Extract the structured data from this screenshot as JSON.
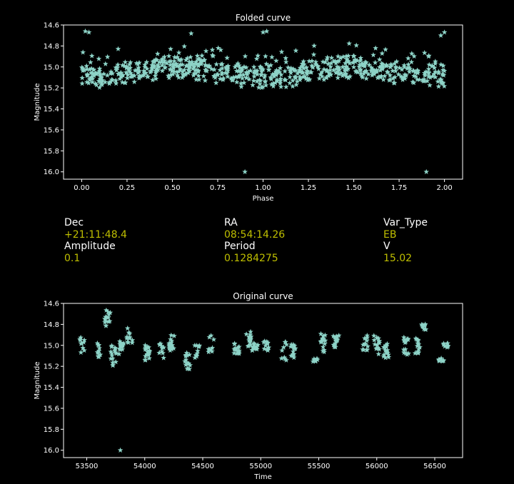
{
  "chart_data": [
    {
      "type": "scatter",
      "title": "Folded curve",
      "xlabel": "Phase",
      "ylabel": "Magnitude",
      "xlim": [
        -0.1,
        2.1
      ],
      "ylim": [
        16.07,
        14.6
      ],
      "y_inverted": true,
      "grid": false,
      "marker": "star",
      "color": "#8dd3c7",
      "xticks": [
        "0.00",
        "0.25",
        "0.50",
        "0.75",
        "1.00",
        "1.25",
        "1.50",
        "1.75",
        "2.00"
      ],
      "yticks": [
        "14.6",
        "14.8",
        "15.0",
        "15.2",
        "15.4",
        "15.6",
        "15.8",
        "16.0"
      ],
      "series_notes": "dense band between magnitude 14.85 and 15.2 across phase 0-2, plus outliers",
      "outliers": [
        {
          "x": 0.02,
          "y": 14.66
        },
        {
          "x": 0.04,
          "y": 14.67
        },
        {
          "x": 0.9,
          "y": 16.0
        },
        {
          "x": 1.0,
          "y": 14.67
        },
        {
          "x": 1.02,
          "y": 14.66
        },
        {
          "x": 1.9,
          "y": 16.0
        },
        {
          "x": 2.0,
          "y": 14.67
        },
        {
          "x": 1.98,
          "y": 14.7
        }
      ]
    },
    {
      "type": "scatter",
      "title": "Original curve",
      "xlabel": "Time",
      "ylabel": "Magnitude",
      "xlim": [
        53300,
        56740
      ],
      "ylim": [
        16.07,
        14.6
      ],
      "y_inverted": true,
      "grid": false,
      "marker": "star",
      "color": "#8dd3c7",
      "xticks": [
        "53500",
        "54000",
        "54500",
        "55000",
        "55500",
        "56000",
        "56500"
      ],
      "yticks": [
        "14.6",
        "14.8",
        "15.0",
        "15.2",
        "15.4",
        "15.6",
        "15.8",
        "16.0"
      ],
      "clusters": [
        [
          53460,
          14.92,
          15.08
        ],
        [
          53600,
          14.98,
          15.15
        ],
        [
          53680,
          14.66,
          14.82
        ],
        [
          53730,
          15.0,
          15.2
        ],
        [
          53800,
          14.95,
          15.12
        ],
        [
          53870,
          14.83,
          15.0
        ],
        [
          54020,
          15.0,
          15.15
        ],
        [
          54150,
          14.98,
          15.12
        ],
        [
          54230,
          14.9,
          15.05
        ],
        [
          54370,
          15.05,
          15.23
        ],
        [
          54450,
          15.0,
          15.12
        ],
        [
          54570,
          14.9,
          15.08
        ],
        [
          54790,
          14.98,
          15.08
        ],
        [
          54900,
          14.87,
          15.02
        ],
        [
          54950,
          14.98,
          15.05
        ],
        [
          55050,
          14.96,
          15.1
        ],
        [
          55200,
          14.95,
          15.15
        ],
        [
          55280,
          14.98,
          15.12
        ],
        [
          55470,
          15.12,
          15.16
        ],
        [
          55540,
          14.88,
          15.1
        ],
        [
          55650,
          14.9,
          15.05
        ],
        [
          55900,
          14.88,
          15.05
        ],
        [
          56000,
          14.9,
          15.15
        ],
        [
          56080,
          14.98,
          15.12
        ],
        [
          56250,
          14.9,
          15.1
        ],
        [
          56350,
          14.93,
          15.08
        ],
        [
          56400,
          14.78,
          14.85
        ],
        [
          56560,
          15.12,
          15.16
        ],
        [
          56600,
          14.98,
          15.02
        ]
      ],
      "outliers": [
        {
          "x": 53790,
          "y": 16.0
        }
      ]
    }
  ],
  "info": {
    "dec_label": "Dec",
    "dec_value": "+21:11:48.4",
    "ra_label": "RA",
    "ra_value": "08:54:14.26",
    "vartype_label": "Var_Type",
    "vartype_value": "EB",
    "amplitude_label": "Amplitude",
    "amplitude_value": "0.1",
    "period_label": "Period",
    "period_value": "0.1284275",
    "v_label": "V",
    "v_value": "15.02"
  }
}
